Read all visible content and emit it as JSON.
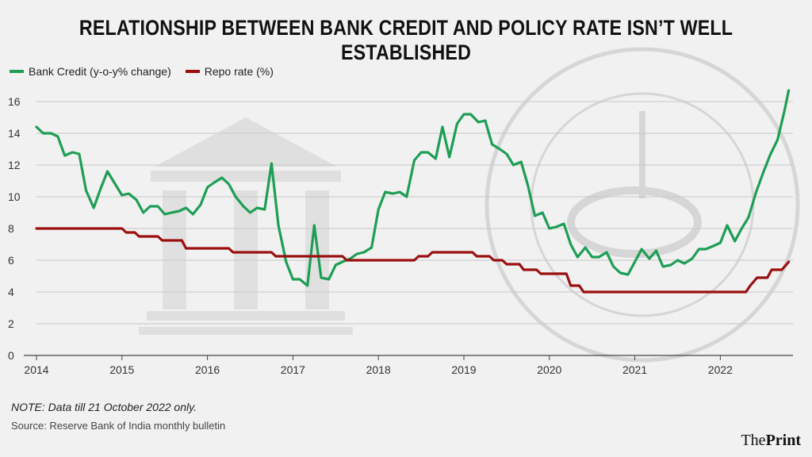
{
  "header": {
    "title": "RELATIONSHIP BETWEEN BANK CREDIT AND POLICY RATE ISN’T WELL ESTABLISHED"
  },
  "footer": {
    "note": "NOTE: Data till 21 October 2022 only.",
    "source": "Source: Reserve Bank of India monthly bulletin",
    "brand_part1": "The",
    "brand_part2": "Print"
  },
  "colors": {
    "bank_credit": "#1e9e55",
    "repo_rate": "#9b0f10",
    "grid": "#c8c8c8",
    "axis": "#444444"
  },
  "chart_data": {
    "type": "line",
    "title": "RELATIONSHIP BETWEEN BANK CREDIT AND POLICY RATE ISN’T WELL ESTABLISHED",
    "xlabel": "",
    "ylabel": "",
    "xlim": [
      2014,
      2022.85
    ],
    "ylim": [
      0,
      16.5
    ],
    "x_ticks": [
      2014,
      2015,
      2016,
      2017,
      2018,
      2019,
      2020,
      2021,
      2022
    ],
    "x_tick_labels": [
      "2014",
      "2015",
      "2016",
      "2017",
      "2018",
      "2019",
      "2020",
      "2021",
      "2022"
    ],
    "y_ticks": [
      0,
      2,
      4,
      6,
      8,
      10,
      12,
      14,
      16
    ],
    "y_tick_labels": [
      "0",
      "2",
      "4",
      "6",
      "8",
      "10",
      "12",
      "14",
      "16"
    ],
    "grid": true,
    "legend_position": "top-left",
    "series": [
      {
        "name": "Bank Credit (y-o-y% change)",
        "color": "#1e9e55",
        "points": [
          [
            2014.0,
            14.4
          ],
          [
            2014.08,
            14.0
          ],
          [
            2014.17,
            14.0
          ],
          [
            2014.25,
            13.8
          ],
          [
            2014.33,
            12.6
          ],
          [
            2014.42,
            12.8
          ],
          [
            2014.5,
            12.7
          ],
          [
            2014.58,
            10.4
          ],
          [
            2014.67,
            9.3
          ],
          [
            2014.75,
            10.5
          ],
          [
            2014.83,
            11.6
          ],
          [
            2014.92,
            10.8
          ],
          [
            2015.0,
            10.1
          ],
          [
            2015.08,
            10.2
          ],
          [
            2015.17,
            9.8
          ],
          [
            2015.25,
            9.0
          ],
          [
            2015.33,
            9.4
          ],
          [
            2015.42,
            9.4
          ],
          [
            2015.5,
            8.9
          ],
          [
            2015.58,
            9.0
          ],
          [
            2015.67,
            9.1
          ],
          [
            2015.75,
            9.3
          ],
          [
            2015.83,
            8.9
          ],
          [
            2015.92,
            9.5
          ],
          [
            2016.0,
            10.6
          ],
          [
            2016.08,
            10.9
          ],
          [
            2016.17,
            11.2
          ],
          [
            2016.25,
            10.8
          ],
          [
            2016.33,
            10.0
          ],
          [
            2016.42,
            9.4
          ],
          [
            2016.5,
            9.0
          ],
          [
            2016.58,
            9.3
          ],
          [
            2016.67,
            9.2
          ],
          [
            2016.75,
            12.1
          ],
          [
            2016.83,
            8.2
          ],
          [
            2016.92,
            5.9
          ],
          [
            2017.0,
            4.8
          ],
          [
            2017.08,
            4.8
          ],
          [
            2017.17,
            4.4
          ],
          [
            2017.25,
            8.2
          ],
          [
            2017.33,
            4.9
          ],
          [
            2017.42,
            4.8
          ],
          [
            2017.5,
            5.7
          ],
          [
            2017.58,
            5.9
          ],
          [
            2017.67,
            6.1
          ],
          [
            2017.75,
            6.4
          ],
          [
            2017.83,
            6.5
          ],
          [
            2017.92,
            6.8
          ],
          [
            2018.0,
            9.2
          ],
          [
            2018.08,
            10.3
          ],
          [
            2018.17,
            10.2
          ],
          [
            2018.25,
            10.3
          ],
          [
            2018.33,
            10.0
          ],
          [
            2018.42,
            12.3
          ],
          [
            2018.5,
            12.8
          ],
          [
            2018.58,
            12.8
          ],
          [
            2018.67,
            12.4
          ],
          [
            2018.75,
            14.4
          ],
          [
            2018.83,
            12.5
          ],
          [
            2018.92,
            14.6
          ],
          [
            2019.0,
            15.2
          ],
          [
            2019.08,
            15.2
          ],
          [
            2019.17,
            14.7
          ],
          [
            2019.25,
            14.8
          ],
          [
            2019.33,
            13.3
          ],
          [
            2019.42,
            13.0
          ],
          [
            2019.5,
            12.7
          ],
          [
            2019.58,
            12.0
          ],
          [
            2019.67,
            12.2
          ],
          [
            2019.75,
            10.7
          ],
          [
            2019.83,
            8.8
          ],
          [
            2019.92,
            9.0
          ],
          [
            2020.0,
            8.0
          ],
          [
            2020.08,
            8.1
          ],
          [
            2020.17,
            8.3
          ],
          [
            2020.25,
            7.0
          ],
          [
            2020.33,
            6.2
          ],
          [
            2020.42,
            6.8
          ],
          [
            2020.5,
            6.2
          ],
          [
            2020.58,
            6.2
          ],
          [
            2020.67,
            6.5
          ],
          [
            2020.75,
            5.6
          ],
          [
            2020.83,
            5.2
          ],
          [
            2020.92,
            5.1
          ],
          [
            2021.0,
            5.9
          ],
          [
            2021.08,
            6.7
          ],
          [
            2021.17,
            6.1
          ],
          [
            2021.25,
            6.6
          ],
          [
            2021.33,
            5.6
          ],
          [
            2021.42,
            5.7
          ],
          [
            2021.5,
            6.0
          ],
          [
            2021.58,
            5.8
          ],
          [
            2021.67,
            6.1
          ],
          [
            2021.75,
            6.7
          ],
          [
            2021.83,
            6.7
          ],
          [
            2021.92,
            6.9
          ],
          [
            2022.0,
            7.1
          ],
          [
            2022.08,
            8.2
          ],
          [
            2022.17,
            7.2
          ],
          [
            2022.25,
            8.0
          ],
          [
            2022.33,
            8.7
          ],
          [
            2022.42,
            10.3
          ],
          [
            2022.5,
            11.5
          ],
          [
            2022.58,
            12.6
          ],
          [
            2022.67,
            13.6
          ],
          [
            2022.75,
            15.4
          ],
          [
            2022.8,
            16.7
          ]
        ]
      },
      {
        "name": "Repo rate (%)",
        "color": "#9b0f10",
        "points": [
          [
            2014.0,
            8.0
          ],
          [
            2015.0,
            8.0
          ],
          [
            2015.05,
            7.75
          ],
          [
            2015.15,
            7.75
          ],
          [
            2015.2,
            7.5
          ],
          [
            2015.42,
            7.5
          ],
          [
            2015.47,
            7.25
          ],
          [
            2015.7,
            7.25
          ],
          [
            2015.75,
            6.75
          ],
          [
            2016.25,
            6.75
          ],
          [
            2016.3,
            6.5
          ],
          [
            2016.75,
            6.5
          ],
          [
            2016.8,
            6.25
          ],
          [
            2017.58,
            6.25
          ],
          [
            2017.63,
            6.0
          ],
          [
            2018.42,
            6.0
          ],
          [
            2018.47,
            6.25
          ],
          [
            2018.58,
            6.25
          ],
          [
            2018.63,
            6.5
          ],
          [
            2019.1,
            6.5
          ],
          [
            2019.15,
            6.25
          ],
          [
            2019.3,
            6.25
          ],
          [
            2019.35,
            6.0
          ],
          [
            2019.45,
            6.0
          ],
          [
            2019.5,
            5.75
          ],
          [
            2019.65,
            5.75
          ],
          [
            2019.7,
            5.4
          ],
          [
            2019.85,
            5.4
          ],
          [
            2019.9,
            5.15
          ],
          [
            2020.2,
            5.15
          ],
          [
            2020.25,
            4.4
          ],
          [
            2020.35,
            4.4
          ],
          [
            2020.4,
            4.0
          ],
          [
            2022.3,
            4.0
          ],
          [
            2022.35,
            4.4
          ],
          [
            2022.43,
            4.9
          ],
          [
            2022.55,
            4.9
          ],
          [
            2022.6,
            5.4
          ],
          [
            2022.72,
            5.4
          ],
          [
            2022.8,
            5.9
          ]
        ]
      }
    ]
  }
}
